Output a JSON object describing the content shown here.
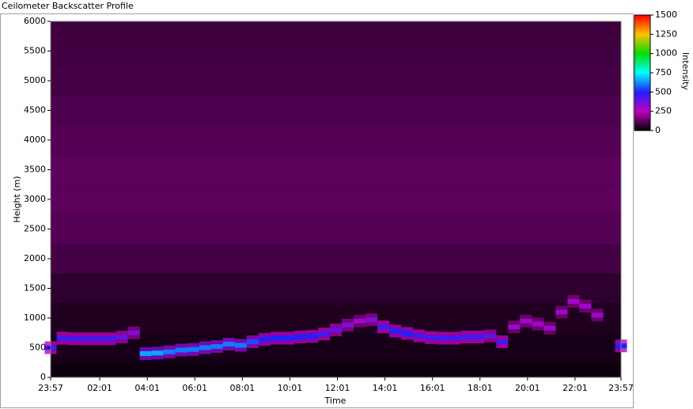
{
  "chart_data": {
    "type": "heatmap",
    "window_title": "Ceilometer Backscatter Profile",
    "xlabel": "Time",
    "ylabel": "Height (m)",
    "colorbar_label": "Intensity",
    "xlim": [
      0,
      1440
    ],
    "xticks": [
      {
        "value": 0,
        "label": "23:57"
      },
      {
        "value": 124,
        "label": "02:01"
      },
      {
        "value": 244,
        "label": "04:01"
      },
      {
        "value": 364,
        "label": "06:01"
      },
      {
        "value": 484,
        "label": "08:01"
      },
      {
        "value": 604,
        "label": "10:01"
      },
      {
        "value": 724,
        "label": "12:01"
      },
      {
        "value": 844,
        "label": "14:01"
      },
      {
        "value": 964,
        "label": "16:01"
      },
      {
        "value": 1084,
        "label": "18:01"
      },
      {
        "value": 1204,
        "label": "20:01"
      },
      {
        "value": 1324,
        "label": "22:01"
      },
      {
        "value": 1440,
        "label": "23:57"
      }
    ],
    "ylim": [
      0,
      6000
    ],
    "yticks": [
      0,
      500,
      1000,
      1500,
      2000,
      2500,
      3000,
      3500,
      4000,
      4500,
      5000,
      5500,
      6000
    ],
    "clim": [
      0,
      1500
    ],
    "cticks": [
      0,
      250,
      500,
      750,
      1000,
      1250,
      1500
    ],
    "colormap": [
      "#000000",
      "#c000c0",
      "#2020ff",
      "#00ffff",
      "#00e000",
      "#ffc000",
      "#ff0000"
    ],
    "background": {
      "heights": [
        0,
        500,
        1000,
        1500,
        2000,
        2500,
        3000,
        3500,
        4000,
        4500,
        5000,
        5500,
        6000
      ],
      "intensity": [
        20,
        30,
        40,
        60,
        90,
        110,
        120,
        120,
        110,
        100,
        90,
        85,
        80
      ]
    },
    "layer": {
      "x": [
        0,
        30,
        60,
        90,
        120,
        150,
        180,
        210,
        240,
        270,
        300,
        330,
        360,
        390,
        420,
        450,
        480,
        510,
        540,
        570,
        600,
        630,
        660,
        690,
        720,
        750,
        780,
        810,
        840,
        870,
        900,
        930,
        960,
        990,
        1020,
        1050,
        1080,
        1110,
        1140,
        1170,
        1200,
        1230,
        1260,
        1290,
        1320,
        1350,
        1380,
        1410,
        1440
      ],
      "heights": [
        500,
        660,
        650,
        650,
        650,
        650,
        680,
        750,
        400,
        410,
        430,
        460,
        470,
        500,
        520,
        560,
        540,
        600,
        640,
        660,
        660,
        680,
        690,
        730,
        800,
        880,
        950,
        970,
        850,
        780,
        740,
        700,
        670,
        660,
        660,
        680,
        680,
        700,
        600,
        850,
        950,
        900,
        830,
        1100,
        1280,
        1200,
        1050,
        null,
        530
      ],
      "intensity": [
        450,
        450,
        450,
        450,
        450,
        450,
        400,
        350,
        650,
        650,
        600,
        600,
        600,
        600,
        600,
        600,
        600,
        550,
        500,
        500,
        500,
        500,
        500,
        450,
        400,
        350,
        300,
        350,
        450,
        500,
        500,
        450,
        450,
        450,
        450,
        450,
        450,
        400,
        450,
        300,
        300,
        300,
        300,
        300,
        300,
        300,
        300,
        null,
        500
      ]
    }
  }
}
